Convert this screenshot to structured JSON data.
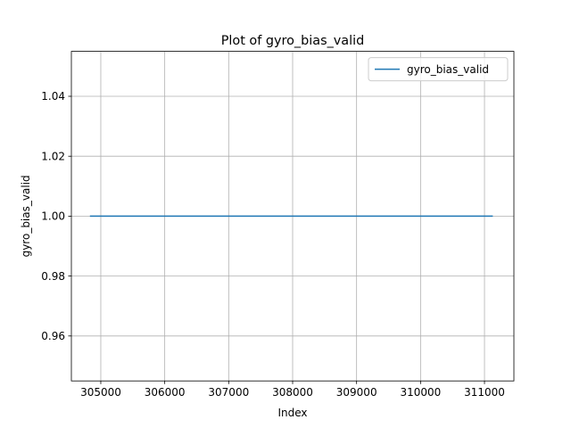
{
  "chart_data": {
    "type": "line",
    "title": "Plot of gyro_bias_valid",
    "xlabel": "Index",
    "ylabel": "gyro_bias_valid",
    "xlim": [
      304540,
      311460
    ],
    "ylim": [
      0.945,
      1.055
    ],
    "x_ticks": [
      305000,
      306000,
      307000,
      308000,
      309000,
      310000,
      311000
    ],
    "x_tick_labels": [
      "305000",
      "306000",
      "307000",
      "308000",
      "309000",
      "310000",
      "311000"
    ],
    "y_ticks": [
      0.96,
      0.98,
      1.0,
      1.02,
      1.04
    ],
    "y_tick_labels": [
      "0.96",
      "0.98",
      "1.00",
      "1.02",
      "1.04"
    ],
    "grid": true,
    "legend_position": "top-right",
    "series": [
      {
        "name": "gyro_bias_valid",
        "color": "#1f77b4",
        "x": [
          304830,
          311130
        ],
        "y": [
          1.0,
          1.0
        ]
      }
    ]
  }
}
